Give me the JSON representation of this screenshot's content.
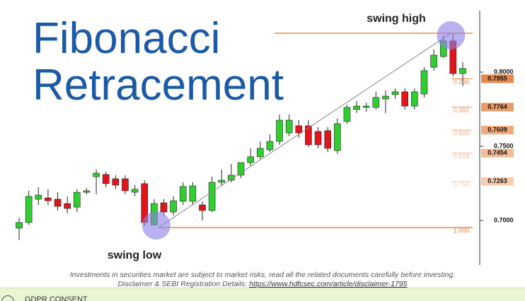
{
  "chart_data": {
    "type": "candlestick",
    "title": "Fibonacci Retracement",
    "categories": [
      null,
      null,
      null,
      null,
      null,
      null,
      null,
      null,
      null,
      null,
      null,
      null,
      null,
      null,
      null,
      null,
      null,
      null,
      null,
      null,
      null,
      null,
      null,
      null,
      null,
      null,
      null,
      null,
      null,
      null,
      null,
      null,
      null,
      null,
      null,
      null,
      null,
      null,
      null,
      null,
      null,
      null,
      null,
      null,
      null,
      null,
      null
    ],
    "open": [
      0.6948,
      0.6986,
      0.7143,
      0.7152,
      0.7143,
      0.7114,
      0.709,
      0.719,
      0.7295,
      0.731,
      0.7281,
      0.7281,
      0.719,
      0.7248,
      0.6971,
      0.7119,
      0.7057,
      0.7129,
      0.7129,
      0.7105,
      0.7067,
      0.7257,
      0.7271,
      0.7305,
      0.739,
      0.7429,
      0.7476,
      0.7533,
      0.759,
      0.7638,
      0.7638,
      0.76,
      0.7605,
      0.7471,
      0.7667,
      0.7748,
      0.7762,
      0.7762,
      0.7819,
      0.7848,
      0.7867,
      0.7771,
      0.7852,
      0.8033,
      0.8105,
      0.821,
      0.799
    ],
    "high": [
      0.7019,
      0.72,
      0.7224,
      0.721,
      0.719,
      0.7162,
      0.721,
      0.7219,
      0.7343,
      0.7329,
      0.7305,
      0.7305,
      0.7238,
      0.7271,
      0.7143,
      0.7143,
      0.7162,
      0.7257,
      0.7257,
      0.7129,
      0.7295,
      0.7343,
      0.7381,
      0.739,
      0.7486,
      0.7533,
      0.7581,
      0.7714,
      0.7714,
      0.7676,
      0.7676,
      0.7629,
      0.7629,
      0.7686,
      0.7781,
      0.7805,
      0.7795,
      0.7867,
      0.7876,
      0.789,
      0.789,
      0.789,
      0.8033,
      0.8152,
      0.8248,
      0.8257,
      0.8067
    ],
    "low": [
      0.6867,
      0.6971,
      0.7105,
      0.7105,
      0.7067,
      0.7048,
      0.7057,
      0.7176,
      0.7176,
      0.7224,
      0.721,
      0.7176,
      0.7162,
      0.6962,
      0.6962,
      0.7033,
      0.7033,
      0.7105,
      0.7105,
      0.7,
      0.7057,
      0.7238,
      0.7257,
      0.7286,
      0.7367,
      0.7414,
      0.7462,
      0.751,
      0.7567,
      0.7557,
      0.7495,
      0.7486,
      0.7462,
      0.7448,
      0.7652,
      0.7724,
      0.7733,
      0.7748,
      0.7724,
      0.7819,
      0.7748,
      0.7748,
      0.7829,
      0.801,
      0.8095,
      0.7971,
      0.7905
    ],
    "close": [
      0.6986,
      0.7162,
      0.7171,
      0.7133,
      0.7095,
      0.7081,
      0.719,
      0.72,
      0.7319,
      0.7248,
      0.7238,
      0.72,
      0.721,
      0.6986,
      0.7114,
      0.7057,
      0.7133,
      0.7229,
      0.7233,
      0.7067,
      0.7257,
      0.7271,
      0.7305,
      0.739,
      0.7429,
      0.7486,
      0.7533,
      0.7676,
      0.7676,
      0.759,
      0.751,
      0.751,
      0.7486,
      0.7652,
      0.7762,
      0.7771,
      0.7771,
      0.7829,
      0.7838,
      0.7867,
      0.7771,
      0.7867,
      0.801,
      0.8114,
      0.821,
      0.799,
      0.8024
    ],
    "up_color": "#2fcf2f",
    "down_color": "#e3141b",
    "ylim": [
      0.67,
      0.84
    ],
    "yticks": [
      {
        "value": 0.8,
        "label": "0.8000"
      },
      {
        "value": 0.75,
        "label": "0.7500"
      },
      {
        "value": 0.7,
        "label": "0.7000"
      }
    ],
    "swing_high": {
      "label": "swing high",
      "value": 0.8262
    },
    "swing_low": {
      "label": "swing low",
      "value": 0.6952
    },
    "level_color": "#ef8a46",
    "marker_color": "#8c7fe6",
    "fib_levels": [
      {
        "ratio": {
          "value": 0.236,
          "label": "0.236"
        },
        "price": 0.7955,
        "color": "#e8874a"
      },
      {
        "ratio": {
          "value": 0.382,
          "label": "0.382"
        },
        "price": 0.7764,
        "color": "#ec9a66"
      },
      {
        "ratio": {
          "value": 0.5,
          "label": "0.500"
        },
        "price": 0.7609,
        "color": "#f0aa7c"
      },
      {
        "ratio": {
          "value": 0.618,
          "label": "0.618"
        },
        "price": 0.7454,
        "color": "#f3ba94"
      },
      {
        "ratio": {
          "value": 0.764,
          "label": "0.764"
        },
        "price": 0.7263,
        "color": "#f7cdae"
      },
      {
        "ratio": {
          "value": 1,
          "label": "1.000"
        },
        "color": "#e8874a"
      }
    ]
  },
  "footer": {
    "line1": "Investments in securities market are subject to market risks, read all the related documents carefully before investing.",
    "line2_label": "Disclaimer & SEBI Registration Details:",
    "line2_link": "https://www.hdfcsec.com/article/disclaimer-1795"
  },
  "consent_bar": {
    "text": "GDPR CONSENT"
  }
}
